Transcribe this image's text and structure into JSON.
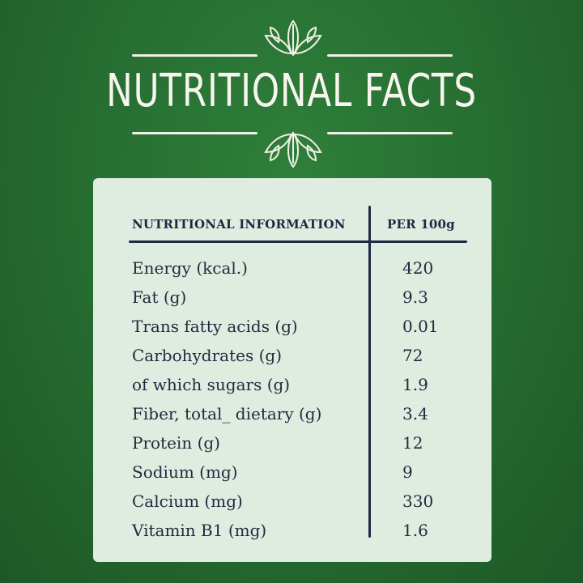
{
  "header": {
    "title": "NUTRITIONAL FACTS",
    "icon": "leaf-icon"
  },
  "table": {
    "col_left": "NUTRITIONAL INFORMATION",
    "col_right": "PER 100g",
    "rows": [
      {
        "label": "Energy (kcal.)",
        "value": "420"
      },
      {
        "label": "Fat (g)",
        "value": "9.3"
      },
      {
        "label": "Trans fatty acids  (g)",
        "value": "0.01"
      },
      {
        "label": "Carbohydrates (g)",
        "value": "72"
      },
      {
        "label": "of which sugars (g)",
        "value": "1.9"
      },
      {
        "label": "Fiber, total_ dietary (g)",
        "value": "3.4"
      },
      {
        "label": "Protein (g)",
        "value": "12"
      },
      {
        "label": "Sodium (mg)",
        "value": "9"
      },
      {
        "label": "Calcium (mg)",
        "value": "330"
      },
      {
        "label": "Vitamin B1 (mg)",
        "value": "1.6"
      }
    ]
  },
  "colors": {
    "background": "#256b30",
    "card": "#dfece0",
    "ink": "#1d2b47",
    "title": "#f7f5ee"
  }
}
